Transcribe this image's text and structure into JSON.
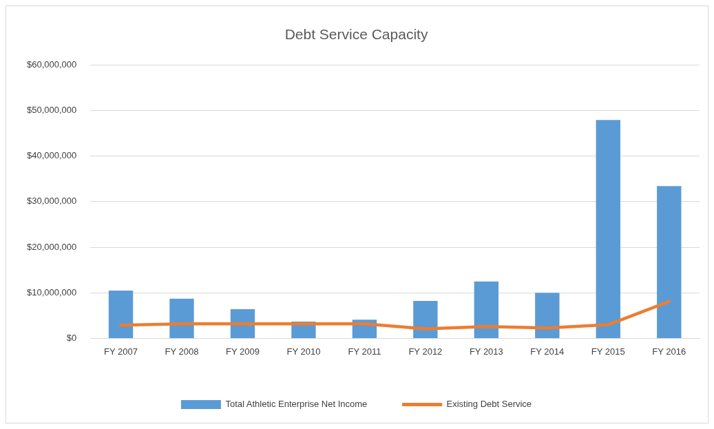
{
  "chart_data": {
    "type": "bar",
    "title": "Debt Service Capacity",
    "categories": [
      "FY 2007",
      "FY 2008",
      "FY 2009",
      "FY 2010",
      "FY 2011",
      "FY 2012",
      "FY 2013",
      "FY 2014",
      "FY 2015",
      "FY 2016"
    ],
    "series": [
      {
        "name": "Total Athletic Enterprise Net Income",
        "color": "#5b9bd5",
        "values": [
          10500000,
          8700000,
          6400000,
          3700000,
          4100000,
          8200000,
          12500000,
          10000000,
          47900000,
          33400000
        ]
      },
      {
        "name": "Existing Debt Service",
        "type": "line",
        "color": "#ed7d31",
        "values": [
          2900000,
          3200000,
          3200000,
          3200000,
          3200000,
          2100000,
          2600000,
          2300000,
          3000000,
          8100000
        ]
      }
    ],
    "ylim": [
      0,
      60000000
    ],
    "yticks": [
      {
        "value": 0,
        "label": "$0"
      },
      {
        "value": 10000000,
        "label": "$10,000,000"
      },
      {
        "value": 20000000,
        "label": "$20,000,000"
      },
      {
        "value": 30000000,
        "label": "$30,000,000"
      },
      {
        "value": 40000000,
        "label": "$40,000,000"
      },
      {
        "value": 50000000,
        "label": "$50,000,000"
      },
      {
        "value": 60000000,
        "label": "$60,000,000"
      }
    ],
    "grid": "y",
    "legend": "bottom",
    "marker": "none",
    "line_style": "solid"
  }
}
